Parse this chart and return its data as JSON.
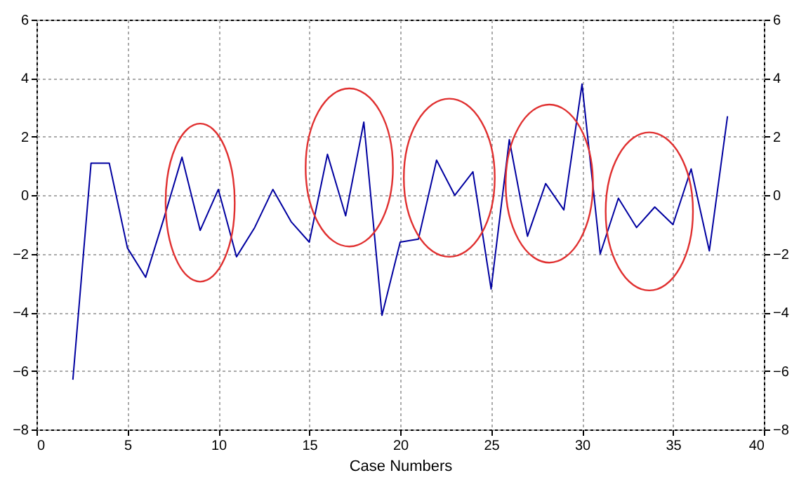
{
  "chart_data": {
    "type": "line",
    "xlabel": "Case Numbers",
    "x": [
      2,
      3,
      4,
      5,
      6,
      7,
      8,
      9,
      10,
      11,
      12,
      13,
      14,
      15,
      16,
      17,
      18,
      19,
      20,
      21,
      22,
      23,
      24,
      25,
      26,
      27,
      28,
      29,
      30,
      31,
      32,
      33,
      34,
      35,
      36,
      37,
      38
    ],
    "series": [
      {
        "color": "#0000a0",
        "values": [
          -6.3,
          1.1,
          1.1,
          -1.8,
          -2.8,
          -0.8,
          1.3,
          -1.2,
          0.2,
          -2.1,
          -1.1,
          0.2,
          -0.9,
          -1.6,
          1.4,
          -0.7,
          2.5,
          -4.1,
          -1.6,
          -1.5,
          1.2,
          0.0,
          0.8,
          -3.2,
          1.9,
          -1.4,
          0.4,
          -0.5,
          3.8,
          -2.0,
          -0.1,
          -1.1,
          -0.4,
          -1.0,
          0.9,
          -1.9,
          2.7
        ]
      }
    ],
    "xlim": [
      0,
      40
    ],
    "xticks": [
      0,
      5,
      10,
      15,
      20,
      25,
      30,
      35,
      40
    ],
    "ylim": [
      -8,
      6
    ],
    "yticks": [
      -8,
      -6,
      -4,
      -2,
      0,
      2,
      4,
      6
    ],
    "y2lim": [
      -8,
      6
    ],
    "y2ticks": [
      -8,
      -6,
      -4,
      -2,
      0,
      2,
      4,
      6
    ],
    "grid": true,
    "line_style": "solid"
  }
}
